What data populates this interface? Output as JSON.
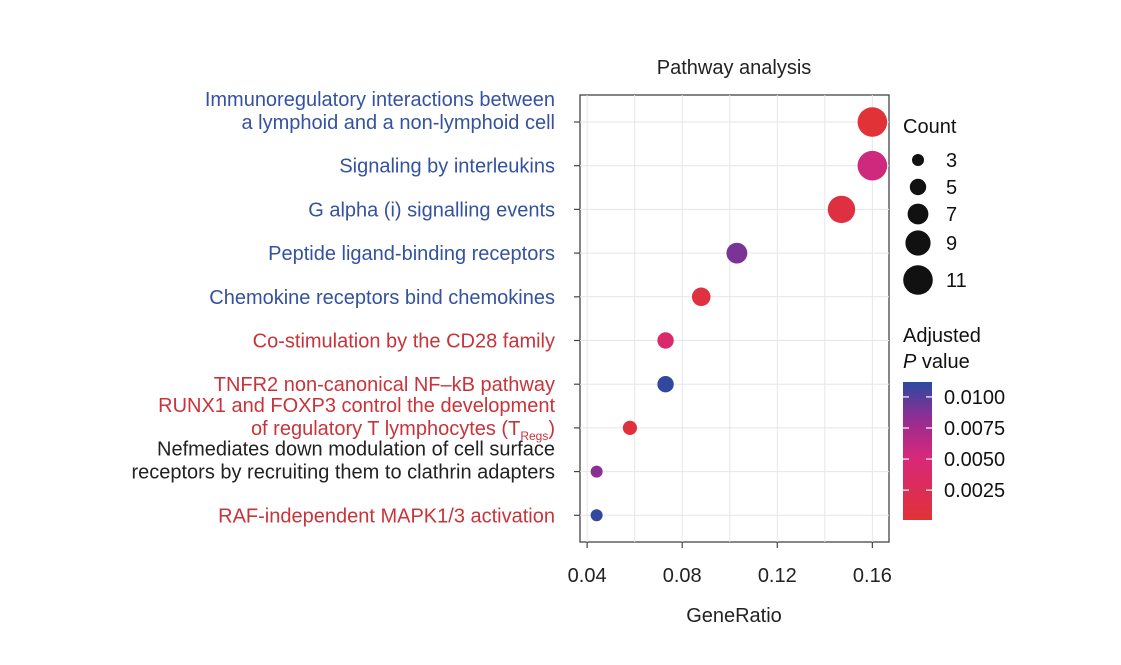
{
  "chart_data": {
    "type": "scatter",
    "title": "Pathway analysis",
    "xlabel": "GeneRatio",
    "xlim": [
      0.037,
      0.167
    ],
    "xticks": [
      0.04,
      0.08,
      0.12,
      0.16
    ],
    "xtick_labels": [
      "0.04",
      "0.08",
      "0.12",
      "0.16"
    ],
    "grid": true,
    "colors": {
      "high_p": "#2b4aa0",
      "mid_p": "#8e2e94",
      "low_p": "#e03236",
      "label_blue": "#3452a0",
      "label_red": "#c8343a",
      "label_black": "#222222"
    },
    "pathways": [
      {
        "lines": [
          "Immunoregulatory interactions between",
          "a lymphoid and a non-lymphoid cell"
        ],
        "label_color": "blue",
        "gene_ratio": 0.16,
        "count": 11,
        "p_adj": 0.0002
      },
      {
        "lines": [
          "Signaling by interleukins"
        ],
        "label_color": "blue",
        "gene_ratio": 0.16,
        "count": 11,
        "p_adj": 0.0055
      },
      {
        "lines": [
          "G alpha (i) signalling events"
        ],
        "label_color": "blue",
        "gene_ratio": 0.147,
        "count": 10,
        "p_adj": 0.001
      },
      {
        "lines": [
          "Peptide ligand-binding receptors"
        ],
        "label_color": "blue",
        "gene_ratio": 0.103,
        "count": 7,
        "p_adj": 0.009
      },
      {
        "lines": [
          "Chemokine receptors bind chemokines"
        ],
        "label_color": "blue",
        "gene_ratio": 0.088,
        "count": 6,
        "p_adj": 0.0008
      },
      {
        "lines": [
          "Co-stimulation by the CD28 family"
        ],
        "label_color": "red",
        "gene_ratio": 0.073,
        "count": 5,
        "p_adj": 0.004
      },
      {
        "lines": [
          "TNFR2 non-canonical NF–kB pathway"
        ],
        "label_color": "red",
        "gene_ratio": 0.073,
        "count": 5,
        "p_adj": 0.011
      },
      {
        "lines": [
          "RUNX1 and FOXP3 control the development",
          "of regulatory T lymphocytes (T"
        ],
        "subscript": "Regs",
        "suffix": ")",
        "label_color": "red",
        "gene_ratio": 0.058,
        "count": 4,
        "p_adj": 0.0005
      },
      {
        "lines": [
          "Nefmediates down modulation of cell surface",
          "receptors by recruiting them to clathrin adapters"
        ],
        "label_color": "black",
        "gene_ratio": 0.044,
        "count": 3,
        "p_adj": 0.0085
      },
      {
        "lines": [
          "RAF-independent MAPK1/3 activation"
        ],
        "label_color": "red",
        "gene_ratio": 0.044,
        "count": 3,
        "p_adj": 0.011
      }
    ],
    "legend_size": {
      "title": "Count",
      "entries": [
        {
          "value": 3,
          "label": "3"
        },
        {
          "value": 5,
          "label": "5"
        },
        {
          "value": 7,
          "label": "7"
        },
        {
          "value": 9,
          "label": "9"
        },
        {
          "value": 11,
          "label": "11"
        }
      ]
    },
    "legend_color": {
      "title_line1": "Adjusted",
      "title_p": "P",
      "title_rest": " value",
      "range": [
        0.0001,
        0.0112
      ],
      "ticks": [
        {
          "value": 0.01,
          "label": "0.0100"
        },
        {
          "value": 0.0075,
          "label": "0.0075"
        },
        {
          "value": 0.005,
          "label": "0.0050"
        },
        {
          "value": 0.0025,
          "label": "0.0025"
        }
      ]
    }
  }
}
